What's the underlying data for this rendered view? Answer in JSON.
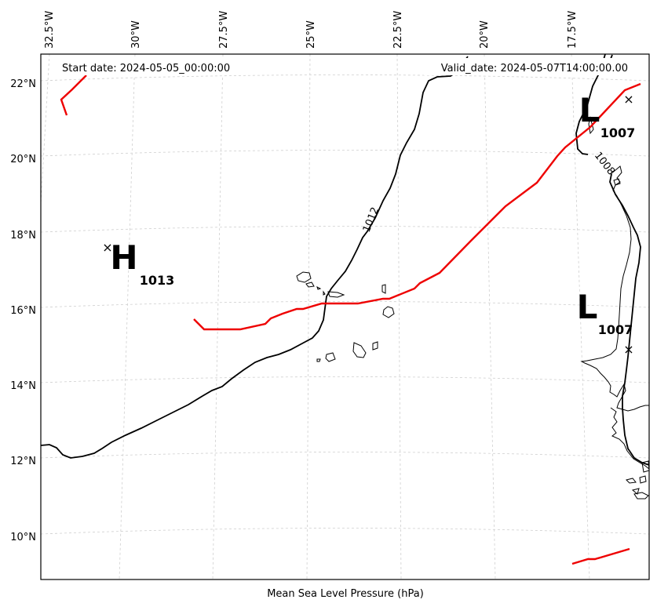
{
  "header": {
    "start_date": "Start date: 2024-05-05_00:00:00",
    "valid_date": "Valid_date: 2024-05-07T14:00:00.00"
  },
  "footer": {
    "caption": "Mean Sea Level Pressure (hPa)"
  },
  "longitude_ticks": [
    "32.5°W",
    "30°W",
    "27.5°W",
    "25°W",
    "22.5°W",
    "20°W",
    "17.5°W"
  ],
  "latitude_ticks": [
    "22°N",
    "20°N",
    "18°N",
    "16°N",
    "14°N",
    "12°N",
    "10°N"
  ],
  "pressure_centers": [
    {
      "type": "H",
      "value": "1013",
      "marker": "×"
    },
    {
      "type": "L",
      "value": "1007",
      "marker": "×"
    },
    {
      "type": "L",
      "value": "1007",
      "marker": "×"
    }
  ],
  "contour_labels": [
    "1012",
    "1008"
  ],
  "colors": {
    "front": "#ee0000",
    "isobar": "#000000",
    "grid": "#cfcfcf"
  }
}
